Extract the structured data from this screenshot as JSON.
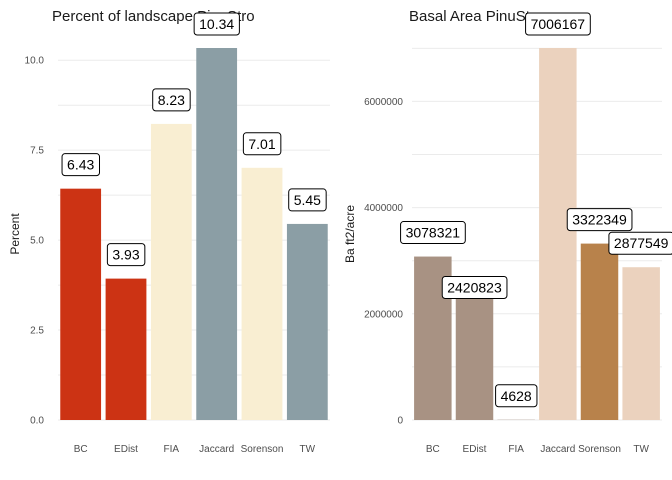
{
  "chart_data": [
    {
      "type": "bar",
      "title": "Percent of landscape  PinuStro",
      "xlabel": "",
      "ylabel": "Percent",
      "categories": [
        "BC",
        "EDist",
        "FIA",
        "Jaccard",
        "Sorenson",
        "TW"
      ],
      "values": [
        6.43,
        3.93,
        8.23,
        10.34,
        7.01,
        5.45
      ],
      "labels": [
        "6.43",
        "3.93",
        "8.23",
        "10.34",
        "7.01",
        "5.45"
      ],
      "colors": [
        "#CC3314",
        "#CC3314",
        "#F9EED2",
        "#8B9EA5",
        "#F9EED2",
        "#8B9EA5"
      ],
      "ylim": [
        0,
        10.34
      ],
      "yticks": [
        0,
        2.5,
        5,
        7.5,
        10
      ],
      "ytick_labels": [
        "0.0",
        "2.5",
        "5.0",
        "7.5",
        "10.0"
      ],
      "grid": true
    },
    {
      "type": "bar",
      "title": "Basal Area  PinuStro",
      "xlabel": "",
      "ylabel": "Ba ft2/acre",
      "categories": [
        "BC",
        "EDist",
        "FIA",
        "Jaccard",
        "Sorenson",
        "TW"
      ],
      "values": [
        3078321,
        2420823,
        4628,
        7006167,
        3322349,
        2877549
      ],
      "labels": [
        "3078321",
        "2420823",
        "4628",
        "7006167",
        "3322349",
        "2877549"
      ],
      "colors": [
        "#A89283",
        "#A89283",
        "#A89283",
        "#EBD2BE",
        "#B8824B",
        "#EBD2BE"
      ],
      "ylim": [
        0,
        7006167
      ],
      "yticks": [
        0,
        2000000,
        4000000,
        6000000
      ],
      "ytick_labels": [
        "0",
        "2000000",
        "4000000",
        "6000000"
      ],
      "grid": true
    }
  ]
}
